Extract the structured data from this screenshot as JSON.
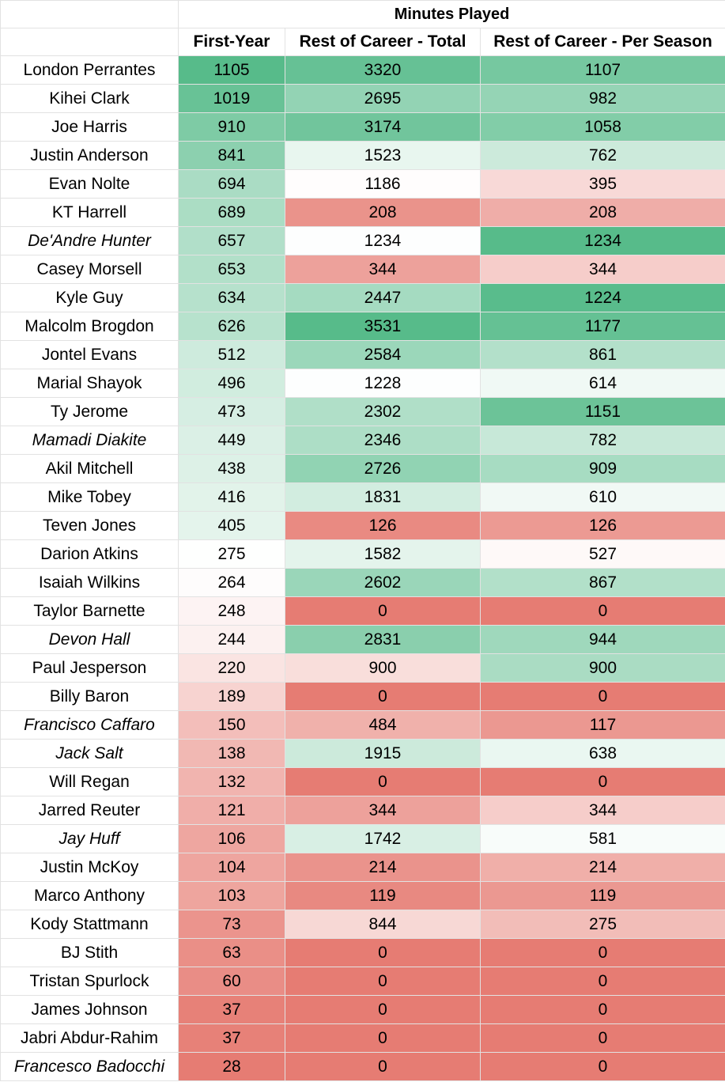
{
  "chart_data": {
    "type": "table",
    "group_header": "Minutes Played",
    "columns": [
      "First-Year",
      "Rest of Career - Total",
      "Rest of Career - Per Season"
    ],
    "rows": [
      {
        "name": "London Perrantes",
        "italic": false,
        "values": [
          1105,
          3320,
          1107
        ]
      },
      {
        "name": "Kihei Clark",
        "italic": false,
        "values": [
          1019,
          2695,
          982
        ]
      },
      {
        "name": "Joe Harris",
        "italic": false,
        "values": [
          910,
          3174,
          1058
        ]
      },
      {
        "name": "Justin Anderson",
        "italic": false,
        "values": [
          841,
          1523,
          762
        ]
      },
      {
        "name": "Evan Nolte",
        "italic": false,
        "values": [
          694,
          1186,
          395
        ]
      },
      {
        "name": "KT Harrell",
        "italic": false,
        "values": [
          689,
          208,
          208
        ]
      },
      {
        "name": "De'Andre Hunter",
        "italic": true,
        "values": [
          657,
          1234,
          1234
        ]
      },
      {
        "name": "Casey Morsell",
        "italic": false,
        "values": [
          653,
          344,
          344
        ]
      },
      {
        "name": "Kyle Guy",
        "italic": false,
        "values": [
          634,
          2447,
          1224
        ]
      },
      {
        "name": "Malcolm Brogdon",
        "italic": false,
        "values": [
          626,
          3531,
          1177
        ]
      },
      {
        "name": "Jontel Evans",
        "italic": false,
        "values": [
          512,
          2584,
          861
        ]
      },
      {
        "name": "Marial Shayok",
        "italic": false,
        "values": [
          496,
          1228,
          614
        ]
      },
      {
        "name": "Ty Jerome",
        "italic": false,
        "values": [
          473,
          2302,
          1151
        ]
      },
      {
        "name": "Mamadi Diakite",
        "italic": true,
        "values": [
          449,
          2346,
          782
        ]
      },
      {
        "name": "Akil Mitchell",
        "italic": false,
        "values": [
          438,
          2726,
          909
        ]
      },
      {
        "name": "Mike Tobey",
        "italic": false,
        "values": [
          416,
          1831,
          610
        ]
      },
      {
        "name": "Teven Jones",
        "italic": false,
        "values": [
          405,
          126,
          126
        ]
      },
      {
        "name": "Darion Atkins",
        "italic": false,
        "values": [
          275,
          1582,
          527
        ]
      },
      {
        "name": "Isaiah Wilkins",
        "italic": false,
        "values": [
          264,
          2602,
          867
        ]
      },
      {
        "name": "Taylor Barnette",
        "italic": false,
        "values": [
          248,
          0,
          0
        ]
      },
      {
        "name": "Devon Hall",
        "italic": true,
        "values": [
          244,
          2831,
          944
        ]
      },
      {
        "name": "Paul Jesperson",
        "italic": false,
        "values": [
          220,
          900,
          900
        ]
      },
      {
        "name": "Billy Baron",
        "italic": false,
        "values": [
          189,
          0,
          0
        ]
      },
      {
        "name": "Francisco Caffaro",
        "italic": true,
        "values": [
          150,
          484,
          117
        ]
      },
      {
        "name": "Jack Salt",
        "italic": true,
        "values": [
          138,
          1915,
          638
        ]
      },
      {
        "name": "Will Regan",
        "italic": false,
        "values": [
          132,
          0,
          0
        ]
      },
      {
        "name": "Jarred Reuter",
        "italic": false,
        "values": [
          121,
          344,
          344
        ]
      },
      {
        "name": "Jay Huff",
        "italic": true,
        "values": [
          106,
          1742,
          581
        ]
      },
      {
        "name": "Justin McKoy",
        "italic": false,
        "values": [
          104,
          214,
          214
        ]
      },
      {
        "name": "Marco Anthony",
        "italic": false,
        "values": [
          103,
          119,
          119
        ]
      },
      {
        "name": "Kody Stattmann",
        "italic": false,
        "values": [
          73,
          844,
          275
        ]
      },
      {
        "name": "BJ Stith",
        "italic": false,
        "values": [
          63,
          0,
          0
        ]
      },
      {
        "name": "Tristan Spurlock",
        "italic": false,
        "values": [
          60,
          0,
          0
        ]
      },
      {
        "name": "James Johnson",
        "italic": false,
        "values": [
          37,
          0,
          0
        ]
      },
      {
        "name": "Jabri Abdur-Rahim",
        "italic": false,
        "values": [
          37,
          0,
          0
        ]
      },
      {
        "name": "Francesco Badocchi",
        "italic": true,
        "values": [
          28,
          0,
          0
        ]
      }
    ],
    "color_scale": {
      "low": "#e67c73",
      "mid": "#ffffff",
      "high": "#57bb8a"
    }
  }
}
